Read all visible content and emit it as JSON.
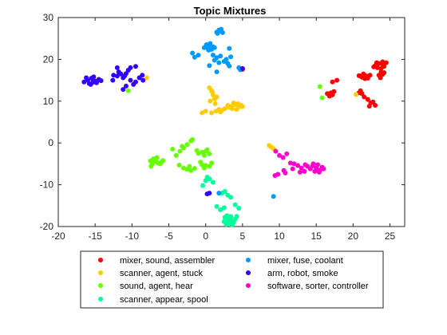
{
  "chart_data": {
    "type": "scatter",
    "title": "Topic Mixtures",
    "xlabel": "",
    "ylabel": "",
    "xlim": [
      -20,
      27
    ],
    "ylim": [
      -20,
      30
    ],
    "xticks": [
      "-20",
      "-15",
      "-10",
      "-5",
      "0",
      "5",
      "10",
      "15",
      "20",
      "25"
    ],
    "yticks": [
      "-20",
      "-10",
      "0",
      "10",
      "20",
      "30"
    ],
    "grid": false,
    "legend_position": "bottom-outside",
    "series": [
      {
        "name": "mixer, sound, assembler",
        "color": "#ff0000",
        "points": [
          [
            21,
            16
          ],
          [
            21.5,
            16.3
          ],
          [
            22,
            16
          ],
          [
            21.2,
            15.7
          ],
          [
            21.8,
            15.8
          ],
          [
            22.3,
            16.2
          ],
          [
            21.4,
            16.5
          ],
          [
            22,
            15.5
          ],
          [
            20.8,
            16.1
          ],
          [
            21.6,
            15.4
          ],
          [
            23,
            18.5
          ],
          [
            23.5,
            19
          ],
          [
            24,
            18.8
          ],
          [
            23.2,
            19.2
          ],
          [
            24.2,
            18.3
          ],
          [
            23.8,
            17.8
          ],
          [
            24.5,
            19.2
          ],
          [
            22.8,
            18.2
          ],
          [
            23.3,
            18
          ],
          [
            24,
            19.4
          ],
          [
            23.8,
            17
          ],
          [
            24,
            16.4
          ],
          [
            24.2,
            16.8
          ],
          [
            23.7,
            15.6
          ],
          [
            23.5,
            16.2
          ],
          [
            21,
            12.5
          ],
          [
            21.2,
            11.8
          ],
          [
            21.5,
            11
          ],
          [
            20.8,
            12
          ],
          [
            22,
            10.4
          ],
          [
            22.4,
            9.6
          ],
          [
            23,
            9
          ],
          [
            22.7,
            9.8
          ],
          [
            22.2,
            8.8
          ],
          [
            16.5,
            11.8
          ],
          [
            16.8,
            11.2
          ],
          [
            17,
            12
          ],
          [
            17.2,
            11.5
          ],
          [
            17.4,
            12.3
          ],
          [
            17.8,
            15
          ],
          [
            17.2,
            14.6
          ],
          [
            5,
            17.6
          ]
        ]
      },
      {
        "name": "scanner, agent, stuck",
        "color": "#ffcc00",
        "points": [
          [
            0.5,
            13.2
          ],
          [
            0.8,
            12.5
          ],
          [
            1,
            11.5
          ],
          [
            1.2,
            10.5
          ],
          [
            0.6,
            10
          ],
          [
            1.5,
            11
          ],
          [
            1.3,
            9.4
          ],
          [
            0.9,
            12.2
          ],
          [
            3.5,
            8.8
          ],
          [
            4,
            9.2
          ],
          [
            4.5,
            8.6
          ],
          [
            3.2,
            8.5
          ],
          [
            4.8,
            9
          ],
          [
            3.8,
            9.6
          ],
          [
            4.2,
            8
          ],
          [
            3,
            9
          ],
          [
            5,
            8.7
          ],
          [
            4.4,
            9.4
          ],
          [
            3.6,
            8.2
          ],
          [
            1.8,
            8
          ],
          [
            2.2,
            7.8
          ],
          [
            2.6,
            8.2
          ],
          [
            1.4,
            7.6
          ],
          [
            0.8,
            7.2
          ],
          [
            0,
            7.6
          ],
          [
            -0.5,
            7.2
          ],
          [
            2,
            7.4
          ],
          [
            -8,
            15.6
          ],
          [
            20.4,
            11.6
          ],
          [
            8.6,
            -0.6
          ],
          [
            9.2,
            -1.4
          ],
          [
            8.9,
            -1
          ]
        ]
      },
      {
        "name": "sound, agent, hear",
        "color": "#66ff00",
        "points": [
          [
            -7,
            -4.5
          ],
          [
            -6.5,
            -4.8
          ],
          [
            -7.3,
            -5.2
          ],
          [
            -6.8,
            -4
          ],
          [
            -6,
            -4.6
          ],
          [
            -7.5,
            -4.3
          ],
          [
            -6.2,
            -5
          ],
          [
            -6.6,
            -3.5
          ],
          [
            -7.1,
            -3.8
          ],
          [
            -5.8,
            -4.2
          ],
          [
            -7.4,
            -5.6
          ],
          [
            -1,
            -2.5
          ],
          [
            -0.5,
            -2.2
          ],
          [
            0,
            -2
          ],
          [
            -0.2,
            -3
          ],
          [
            0.5,
            -2.6
          ],
          [
            -1.2,
            -1.8
          ],
          [
            0.2,
            -1.6
          ],
          [
            -4,
            -3
          ],
          [
            -3.5,
            -2
          ],
          [
            -4.5,
            -1.5
          ],
          [
            -3,
            -1.2
          ],
          [
            -2.5,
            -0.4
          ],
          [
            -2,
            0.5
          ],
          [
            -1.8,
            0.8
          ],
          [
            -3.2,
            -0.8
          ],
          [
            -3,
            -6
          ],
          [
            -2.5,
            -6.3
          ],
          [
            -2,
            -6.6
          ],
          [
            -1.5,
            -6.1
          ],
          [
            -2.2,
            -5.6
          ],
          [
            -3.6,
            -5.3
          ],
          [
            -0.5,
            -5.2
          ],
          [
            0,
            -5.4
          ],
          [
            0.5,
            -5.6
          ],
          [
            -0.2,
            -6
          ],
          [
            0.8,
            -4.8
          ],
          [
            -0.7,
            -4.6
          ],
          [
            -10.5,
            12.5
          ],
          [
            15.5,
            13.5
          ],
          [
            15.8,
            10.8
          ]
        ]
      },
      {
        "name": "scanner, appear, spool",
        "color": "#00ff99",
        "points": [
          [
            3,
            -18
          ],
          [
            3.5,
            -18.5
          ],
          [
            2.5,
            -18.8
          ],
          [
            3.2,
            -19.2
          ],
          [
            3.8,
            -19
          ],
          [
            2.8,
            -19.5
          ],
          [
            3.4,
            -17.6
          ],
          [
            2.6,
            -17.8
          ],
          [
            4,
            -18.2
          ],
          [
            3.1,
            -18.9
          ],
          [
            3.6,
            -19.6
          ],
          [
            2.9,
            -17.4
          ],
          [
            3.3,
            -18.4
          ],
          [
            4.2,
            -17.6
          ],
          [
            2,
            -16
          ],
          [
            2.5,
            -15.5
          ],
          [
            1.5,
            -15.2
          ],
          [
            4.5,
            -15.6
          ],
          [
            4,
            -14.8
          ],
          [
            2.2,
            -12
          ],
          [
            3,
            -12.5
          ],
          [
            2.6,
            -11.6
          ],
          [
            3.4,
            -13
          ],
          [
            0,
            -9
          ],
          [
            0.5,
            -8.6
          ],
          [
            1,
            -9.4
          ],
          [
            0.2,
            -8.2
          ],
          [
            -0.4,
            -10.2
          ]
        ]
      },
      {
        "name": "mixer, fuse, coolant",
        "color": "#0099ff",
        "points": [
          [
            0,
            23
          ],
          [
            0.5,
            23.2
          ],
          [
            1,
            23
          ],
          [
            0.3,
            22.6
          ],
          [
            0.8,
            22.4
          ],
          [
            0.1,
            23.5
          ],
          [
            0.6,
            23.8
          ],
          [
            1.2,
            22.8
          ],
          [
            -0.2,
            22.8
          ],
          [
            0.4,
            22.2
          ],
          [
            1.5,
            26.5
          ],
          [
            2,
            26.8
          ],
          [
            1.8,
            27
          ],
          [
            2.3,
            26.4
          ],
          [
            1.6,
            26.2
          ],
          [
            2.1,
            27.2
          ],
          [
            1,
            21
          ],
          [
            1.5,
            20.4
          ],
          [
            2,
            20.8
          ],
          [
            1.2,
            19.8
          ],
          [
            2.5,
            19.5
          ],
          [
            3,
            19
          ],
          [
            2.8,
            20
          ],
          [
            1.8,
            19.2
          ],
          [
            3.2,
            18.4
          ],
          [
            -1.5,
            20.5
          ],
          [
            -1.8,
            21.5
          ],
          [
            -1,
            21
          ],
          [
            4.5,
            18
          ],
          [
            4.7,
            17.5
          ],
          [
            0.5,
            18.5
          ],
          [
            1.5,
            17
          ],
          [
            3.2,
            22.6
          ],
          [
            3.4,
            20.6
          ],
          [
            1.8,
            -12
          ],
          [
            9.2,
            -12.8
          ]
        ]
      },
      {
        "name": "arm, robot, smoke",
        "color": "#3300ff",
        "points": [
          [
            -16,
            15
          ],
          [
            -15.5,
            15.5
          ],
          [
            -15,
            14.8
          ],
          [
            -15.8,
            14.2
          ],
          [
            -14.5,
            15.2
          ],
          [
            -16.5,
            14.6
          ],
          [
            -15.2,
            15.8
          ],
          [
            -14.8,
            14.4
          ],
          [
            -15.6,
            14
          ],
          [
            -16.2,
            15.6
          ],
          [
            -14.2,
            14.9
          ],
          [
            -15.3,
            14.5
          ],
          [
            -12,
            16
          ],
          [
            -11.5,
            16.5
          ],
          [
            -11,
            16
          ],
          [
            -12.5,
            16.2
          ],
          [
            -11.8,
            17
          ],
          [
            -10.8,
            16.6
          ],
          [
            -10.5,
            17.4
          ],
          [
            -11.2,
            15.6
          ],
          [
            -10.2,
            15
          ],
          [
            -9.5,
            14.6
          ],
          [
            -9,
            15.6
          ],
          [
            -8.6,
            16.2
          ],
          [
            -9.8,
            14
          ],
          [
            -8.5,
            15
          ],
          [
            -10.8,
            13.6
          ],
          [
            -11.2,
            12.8
          ],
          [
            -12.6,
            15
          ],
          [
            -12,
            18
          ],
          [
            -9.5,
            18.3
          ],
          [
            -10.2,
            18
          ],
          [
            5,
            17.8
          ],
          [
            0.5,
            -12
          ],
          [
            0.2,
            -12.2
          ]
        ]
      },
      {
        "name": "software, sorter, controller",
        "color": "#ff00cc",
        "points": [
          [
            15,
            -6
          ],
          [
            14.5,
            -5.5
          ],
          [
            15.5,
            -6.5
          ],
          [
            15.2,
            -5.2
          ],
          [
            14.8,
            -6.8
          ],
          [
            15.8,
            -5.8
          ],
          [
            14.2,
            -6.2
          ],
          [
            15.4,
            -7
          ],
          [
            14.6,
            -5
          ],
          [
            16,
            -6.2
          ],
          [
            13.8,
            -5.6
          ],
          [
            15.1,
            -6.3
          ],
          [
            12,
            -5
          ],
          [
            12.5,
            -5.4
          ],
          [
            11.5,
            -4.8
          ],
          [
            13,
            -6
          ],
          [
            12.8,
            -7
          ],
          [
            13.4,
            -6.8
          ],
          [
            13.5,
            -5.2
          ],
          [
            11.8,
            -6.2
          ],
          [
            10.5,
            -3.5
          ],
          [
            10,
            -3
          ],
          [
            11,
            -2.6
          ],
          [
            9.5,
            -2
          ],
          [
            9.8,
            -7.5
          ],
          [
            9.4,
            -7.8
          ],
          [
            10.6,
            -6.6
          ],
          [
            10.8,
            -7.2
          ]
        ]
      }
    ]
  }
}
